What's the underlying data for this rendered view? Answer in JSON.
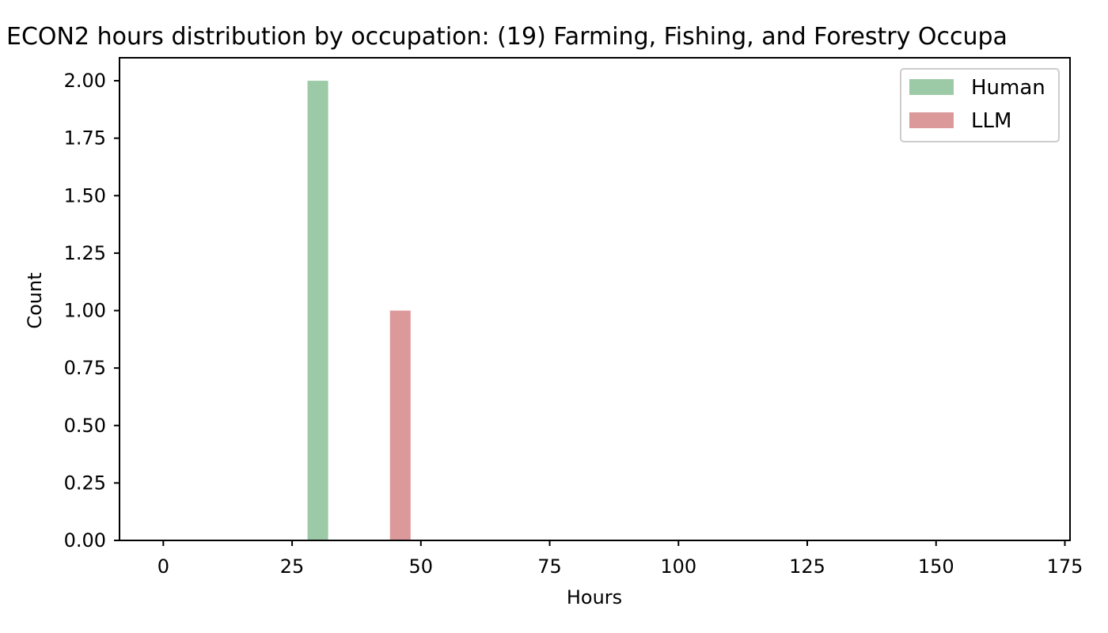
{
  "chart_data": {
    "type": "bar",
    "title": "ECON2 hours distribution by occupation: (19) Farming, Fishing, and Forestry Occupa",
    "xlabel": "Hours",
    "ylabel": "Count",
    "xlim": [
      -8.5,
      176
    ],
    "ylim": [
      0,
      2.1
    ],
    "xticks": [
      "0",
      "25",
      "50",
      "75",
      "100",
      "125",
      "150",
      "175"
    ],
    "xtick_values": [
      0,
      25,
      50,
      75,
      100,
      125,
      150,
      175
    ],
    "yticks": [
      "0.00",
      "0.25",
      "0.50",
      "0.75",
      "1.00",
      "1.25",
      "1.50",
      "1.75",
      "2.00"
    ],
    "ytick_values": [
      0,
      0.25,
      0.5,
      0.75,
      1.0,
      1.25,
      1.5,
      1.75,
      2.0
    ],
    "grid": false,
    "legend_position": "top-right",
    "series": [
      {
        "name": "Human",
        "color": "#9ccaa6",
        "bins": [
          {
            "x_start": 28,
            "x_end": 32,
            "value": 2
          }
        ]
      },
      {
        "name": "LLM",
        "color": "#dc999a",
        "bins": [
          {
            "x_start": 44,
            "x_end": 48,
            "value": 1
          }
        ]
      }
    ]
  }
}
